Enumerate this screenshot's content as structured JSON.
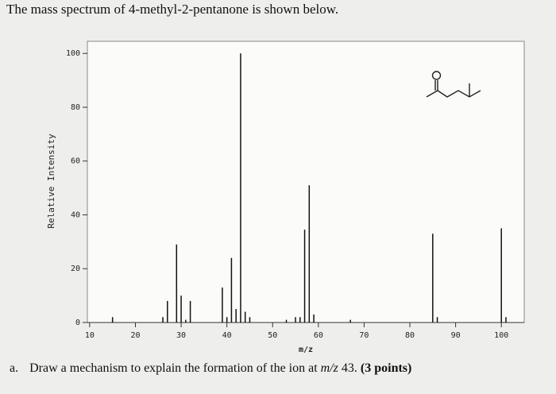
{
  "title": "The mass spectrum of 4-methyl-2-pentanone is shown below.",
  "chart_data": {
    "type": "bar",
    "x_label": "m/z",
    "y_label": "Relative Intensity",
    "x": [
      15,
      26,
      27,
      29,
      30,
      31,
      32,
      39,
      40,
      41,
      42,
      43,
      44,
      45,
      53,
      55,
      56,
      57,
      58,
      59,
      67,
      85,
      86,
      100,
      101
    ],
    "values": [
      2,
      2,
      8,
      29,
      10,
      1,
      8,
      13,
      2,
      24,
      5,
      100,
      4,
      2,
      1,
      2,
      2,
      34.5,
      51,
      3,
      1,
      33,
      2,
      35,
      2
    ],
    "color": "#111111",
    "xlim": [
      9.5,
      105
    ],
    "ylim": [
      0,
      104.5
    ],
    "xticks": [
      10,
      20,
      30,
      40,
      50,
      60,
      70,
      80,
      90,
      100
    ],
    "yticks": [
      0,
      20,
      40,
      60,
      80,
      100
    ],
    "grid": false
  },
  "question": {
    "label": "a.",
    "text": "Draw a mechanism to explain the formation of the ion at",
    "mz": "m/z",
    "number": "43.",
    "points": "(3 points)"
  }
}
